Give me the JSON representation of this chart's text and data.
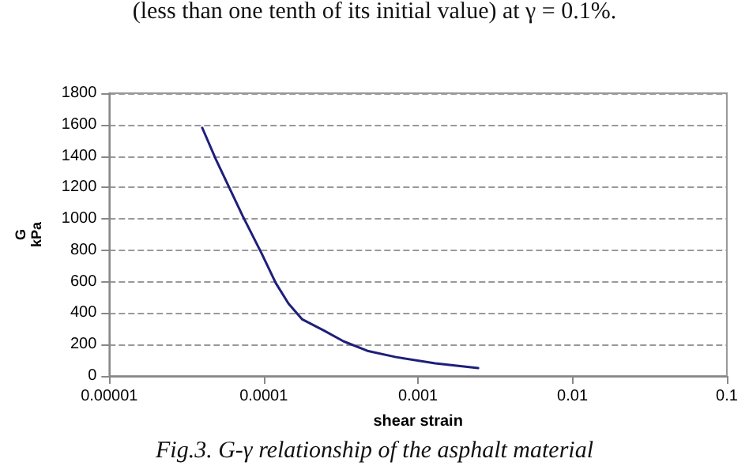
{
  "chart_data": {
    "type": "line",
    "xlabel": "shear strain",
    "ylabel": "G\nkPa",
    "annotations": [
      "(less than one tenth of its initial value) at γ = 0.1%.",
      "Fig.3. G-γ relationship of the asphalt material"
    ],
    "x": [
      4e-05,
      4.9e-05,
      7.3e-05,
      9.7e-05,
      0.00012,
      0.000145,
      0.000178,
      0.000245,
      0.00033,
      0.00047,
      0.00072,
      0.00129,
      0.00245
    ],
    "series": [
      {
        "color": "#1f1f7a",
        "values": [
          1580,
          1380,
          1020,
          780,
          590,
          460,
          360,
          290,
          220,
          160,
          120,
          80,
          50
        ]
      }
    ],
    "log": "x",
    "xlim": [
      1e-05,
      0.1
    ],
    "xticks": [
      {
        "value": 1e-05,
        "label": "0.00001"
      },
      0.0001,
      0.001,
      0.01,
      0.1
    ],
    "ylim": [
      0,
      1800
    ],
    "yticks": [
      0,
      200,
      400,
      600,
      800,
      1000,
      1200,
      1400,
      1600,
      1800
    ],
    "grid": "y",
    "marker": "none",
    "line_style": "solid"
  }
}
